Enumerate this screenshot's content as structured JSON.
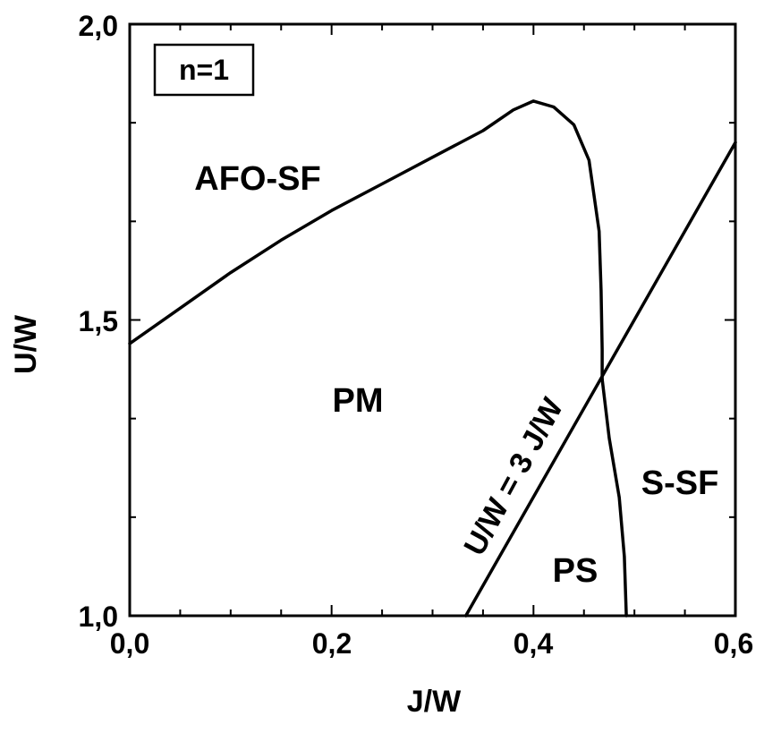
{
  "chart_data": {
    "type": "line",
    "title": "",
    "xlabel": "J/W",
    "ylabel": "U/W",
    "xlim": [
      0.0,
      0.6
    ],
    "ylim": [
      1.0,
      2.0
    ],
    "x_ticks": [
      "0,0",
      "0,2",
      "0,4",
      "0,6"
    ],
    "y_ticks": [
      "1,0",
      "1,5",
      "2,0"
    ],
    "grid": false,
    "legend_box": "n=1",
    "region_labels": [
      "AFO-SF",
      "PM",
      "S-SF",
      "PS"
    ],
    "line_annotation": "U/W = 3 J/W",
    "series": [
      {
        "x": [
          0.0,
          0.05,
          0.1,
          0.15,
          0.2,
          0.25,
          0.3,
          0.35,
          0.38,
          0.4,
          0.42,
          0.44,
          0.455,
          0.465,
          0.467,
          0.468,
          0.468,
          0.468
        ],
        "y": [
          1.46,
          1.52,
          1.58,
          1.635,
          1.685,
          1.73,
          1.775,
          1.82,
          1.855,
          1.87,
          1.86,
          1.83,
          1.77,
          1.65,
          1.55,
          1.45,
          1.4,
          1.4
        ]
      },
      {
        "x": [
          0.468,
          0.475,
          0.485,
          0.49,
          0.492
        ],
        "y": [
          1.4,
          1.3,
          1.2,
          1.1,
          1.0
        ]
      },
      {
        "x": [
          0.333,
          0.6
        ],
        "y": [
          1.0,
          1.8
        ]
      }
    ]
  }
}
